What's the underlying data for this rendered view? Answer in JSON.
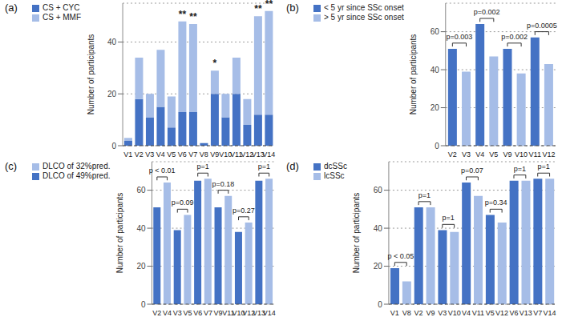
{
  "chart_data": [
    {
      "type": "bar",
      "title": "(a)",
      "y_label": "Number of participants",
      "stacked": true,
      "grid": true,
      "legend": "top left",
      "categories": [
        "V1",
        "V2",
        "V3",
        "V4",
        "V5",
        "V6",
        "V7",
        "V8",
        "V9",
        "V10",
        "V11",
        "V12",
        "V13",
        "V14"
      ],
      "series": [
        {
          "name": "CS + CYC",
          "color": "#4472c4",
          "values": [
            2,
            18,
            11,
            15,
            7,
            13,
            13,
            1,
            20,
            11,
            20,
            8,
            12,
            12
          ]
        },
        {
          "name": "CS + MMF",
          "color": "#a6bde7",
          "values": [
            1,
            16,
            9,
            22,
            12,
            35,
            34,
            0,
            9,
            9,
            14,
            10,
            38,
            40
          ]
        }
      ],
      "ylim": [
        0,
        55
      ],
      "yticks": [
        0,
        20,
        40
      ],
      "annotations": [
        {
          "category": "V6",
          "text": "**"
        },
        {
          "category": "V7",
          "text": "**"
        },
        {
          "category": "V9",
          "text": "*"
        },
        {
          "category": "V13",
          "text": "**"
        },
        {
          "category": "V14",
          "text": "**"
        }
      ]
    },
    {
      "type": "bar",
      "title": "(b)",
      "y_label": "Number of participants",
      "grid": true,
      "legend": "top left",
      "categories": [
        "V2",
        "V3",
        "V4",
        "V5",
        "V9",
        "V10",
        "V11",
        "V12"
      ],
      "series": [
        {
          "name": "< 5 yr since SSc onset",
          "color": "#4472c4",
          "values": [
            51,
            null,
            64,
            null,
            51,
            null,
            57,
            null
          ]
        },
        {
          "name": "> 5 yr since SSc onset",
          "color": "#a6bde7",
          "values": [
            null,
            39,
            null,
            47,
            null,
            38,
            null,
            43
          ]
        }
      ],
      "ylim": [
        0,
        75
      ],
      "yticks": [
        0,
        20,
        40,
        60
      ],
      "annotations": [
        {
          "categories": [
            "V2",
            "V3"
          ],
          "text": "p=0.003"
        },
        {
          "categories": [
            "V4",
            "V5"
          ],
          "text": "p=0.002"
        },
        {
          "categories": [
            "V9",
            "V10"
          ],
          "text": "p=0.002"
        },
        {
          "categories": [
            "V11",
            "V12"
          ],
          "text": "p=0.0005"
        }
      ]
    },
    {
      "type": "bar",
      "title": "(c)",
      "y_label": "Number of participants",
      "grid": true,
      "legend": "top left",
      "categories": [
        "V2",
        "V4",
        "V3",
        "V5",
        "V6",
        "V7",
        "V9",
        "V11",
        "V10",
        "V12",
        "V13",
        "V14"
      ],
      "series": [
        {
          "name": "DLCO of 49%pred.",
          "color": "#4472c4",
          "values": [
            51,
            null,
            39,
            null,
            65,
            null,
            51,
            null,
            38,
            null,
            65,
            null
          ]
        },
        {
          "name": "DLCO of 32%pred.",
          "color": "#a6bde7",
          "values": [
            null,
            64,
            null,
            47,
            null,
            66,
            null,
            57,
            null,
            43,
            null,
            66
          ]
        }
      ],
      "ylim": [
        0,
        75
      ],
      "yticks": [
        0,
        20,
        40,
        60
      ],
      "annotations": [
        {
          "categories": [
            "V2",
            "V4"
          ],
          "text": "p < 0.01"
        },
        {
          "categories": [
            "V3",
            "V5"
          ],
          "text": "p=0.09"
        },
        {
          "categories": [
            "V6",
            "V7"
          ],
          "text": "p=1"
        },
        {
          "categories": [
            "V9",
            "V11"
          ],
          "text": "p=0.18"
        },
        {
          "categories": [
            "V10",
            "V12"
          ],
          "text": "p=0.27"
        },
        {
          "categories": [
            "V13",
            "V14"
          ],
          "text": "p=1"
        }
      ]
    },
    {
      "type": "bar",
      "title": "(d)",
      "y_label": "Number of participants",
      "grid": true,
      "legend": "top left",
      "categories": [
        "V1",
        "V8",
        "V2",
        "V9",
        "V3",
        "V10",
        "V4",
        "V11",
        "V5",
        "V12",
        "V6",
        "V13",
        "V7",
        "V14"
      ],
      "series": [
        {
          "name": "dcSSc",
          "color": "#4472c4",
          "values": [
            19,
            null,
            51,
            null,
            39,
            null,
            64,
            null,
            47,
            null,
            65,
            null,
            66,
            null
          ]
        },
        {
          "name": "lcSSc",
          "color": "#a6bde7",
          "values": [
            null,
            12,
            null,
            51,
            null,
            38,
            null,
            57,
            null,
            43,
            null,
            65,
            null,
            66
          ]
        }
      ],
      "ylim": [
        0,
        75
      ],
      "yticks": [
        0,
        20,
        40,
        60
      ],
      "annotations": [
        {
          "categories": [
            "V1",
            "V8"
          ],
          "text": "p < 0.05"
        },
        {
          "categories": [
            "V2",
            "V9"
          ],
          "text": "p=1"
        },
        {
          "categories": [
            "V3",
            "V10"
          ],
          "text": "p=1"
        },
        {
          "categories": [
            "V4",
            "V11"
          ],
          "text": "p=0.07"
        },
        {
          "categories": [
            "V5",
            "V12"
          ],
          "text": "p=0.34"
        },
        {
          "categories": [
            "V6",
            "V13"
          ],
          "text": "p=1"
        },
        {
          "categories": [
            "V7",
            "V14"
          ],
          "text": "p=1"
        }
      ]
    }
  ]
}
